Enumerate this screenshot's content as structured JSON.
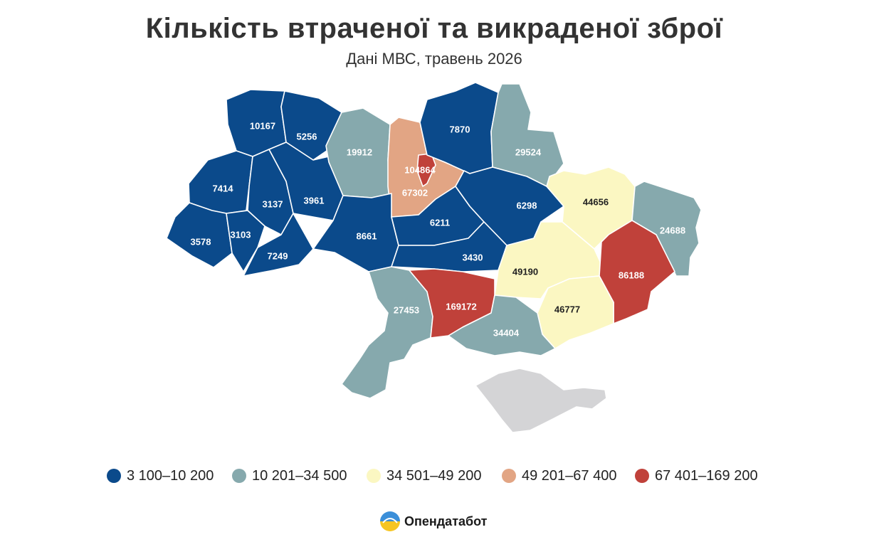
{
  "header": {
    "title": "Кількість втраченої та викраденої зброї",
    "subtitle": "Дані МВС, травень 2026"
  },
  "legend": [
    {
      "label": "3 100–10 200",
      "color": "#0b4a8b"
    },
    {
      "label": "10 201–34 500",
      "color": "#86a9ad"
    },
    {
      "label": "34 501–49 200",
      "color": "#fbf7c2"
    },
    {
      "label": "49 201–67 400",
      "color": "#e2a584"
    },
    {
      "label": "67 401–169 200",
      "color": "#c0413a"
    }
  ],
  "regions": [
    {
      "value": "10167",
      "category": 0
    },
    {
      "value": "5256",
      "category": 0
    },
    {
      "value": "7414",
      "category": 0
    },
    {
      "value": "3137",
      "category": 0
    },
    {
      "value": "3961",
      "category": 0
    },
    {
      "value": "3578",
      "category": 0
    },
    {
      "value": "3103",
      "category": 0
    },
    {
      "value": "7249",
      "category": 0
    },
    {
      "value": "19912",
      "category": 1
    },
    {
      "value": "67302",
      "category": 3
    },
    {
      "value": "104864",
      "category": 4
    },
    {
      "value": "7870",
      "category": 0
    },
    {
      "value": "29524",
      "category": 1
    },
    {
      "value": "8661",
      "category": 0
    },
    {
      "value": "6211",
      "category": 0
    },
    {
      "value": "6298",
      "category": 0
    },
    {
      "value": "3430",
      "category": 0
    },
    {
      "value": "44656",
      "category": 2
    },
    {
      "value": "24688",
      "category": 1
    },
    {
      "value": "49190",
      "category": 2
    },
    {
      "value": "86188",
      "category": 4
    },
    {
      "value": "46777",
      "category": 2
    },
    {
      "value": "27453",
      "category": 1
    },
    {
      "value": "169172",
      "category": 4
    },
    {
      "value": "34404",
      "category": 1
    }
  ],
  "crimea_color": "#d4d4d6",
  "brand": {
    "name": "Опендатабот"
  }
}
